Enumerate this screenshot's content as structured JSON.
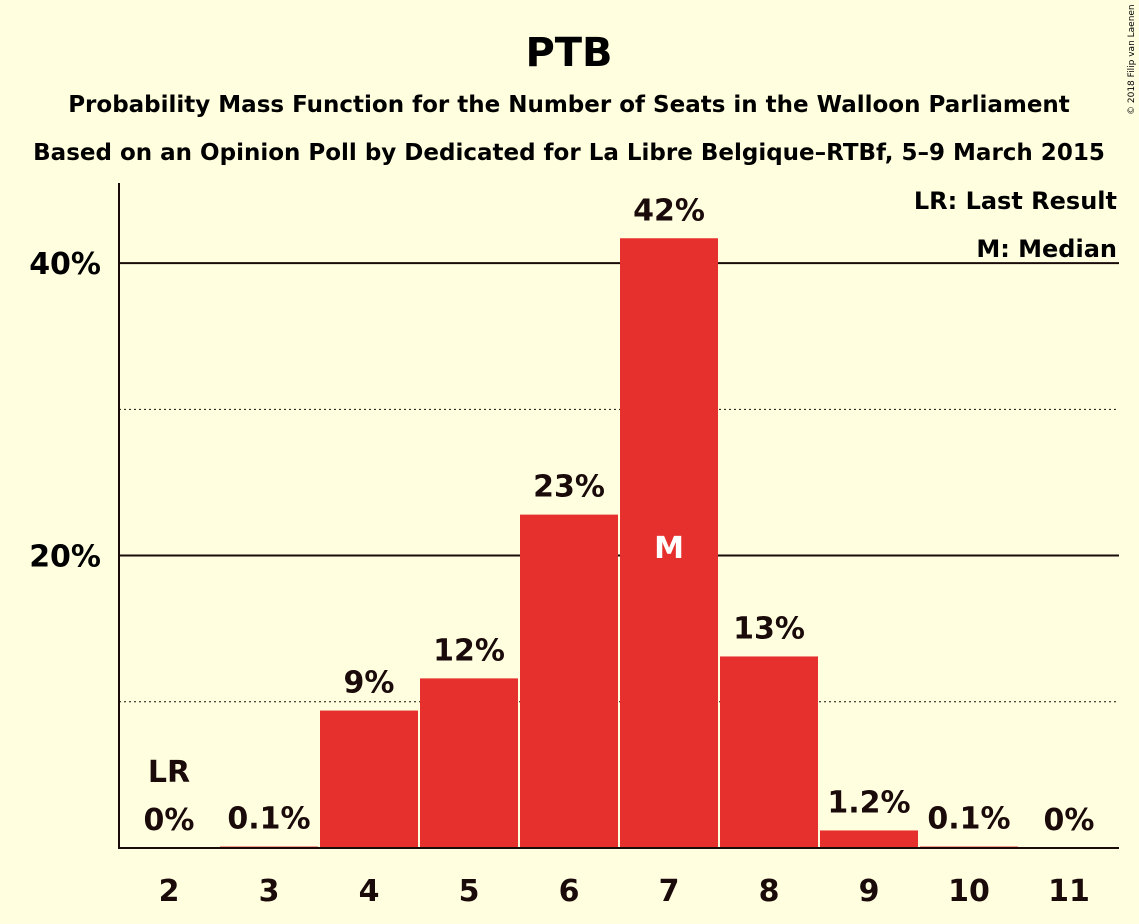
{
  "chart_data": {
    "type": "bar",
    "title": "PTB",
    "subtitle": "Probability Mass Function for the Number of Seats in the Walloon Parliament",
    "subtitle2": "Based on an Opinion Poll by Dedicated for La Libre Belgique–RTBf, 5–9 March 2015",
    "copyright": "© 2018 Filip van Laenen",
    "categories": [
      "2",
      "3",
      "4",
      "5",
      "6",
      "7",
      "8",
      "9",
      "10",
      "11"
    ],
    "values": [
      0,
      0.1,
      9.4,
      11.6,
      22.8,
      41.7,
      13.1,
      1.2,
      0.1,
      0
    ],
    "data_labels": [
      "0%",
      "0.1%",
      "9%",
      "12%",
      "23%",
      "42%",
      "13%",
      "1.2%",
      "0.1%",
      "0%"
    ],
    "ylim": [
      0,
      45
    ],
    "yticks": [
      {
        "value": 20,
        "label": "20%"
      },
      {
        "value": 40,
        "label": "40%"
      }
    ],
    "minor_gridlines": [
      10,
      30
    ],
    "last_result_index": 0,
    "last_result_marker": "LR",
    "median_index": 5,
    "median_marker": "M",
    "legend": {
      "placement": "top-right",
      "lr": "LR: Last Result",
      "m": "M: Median"
    },
    "bar_color": "#E5302E",
    "background_color": "#FFFFE0",
    "text_color": "#1a0a0a"
  }
}
